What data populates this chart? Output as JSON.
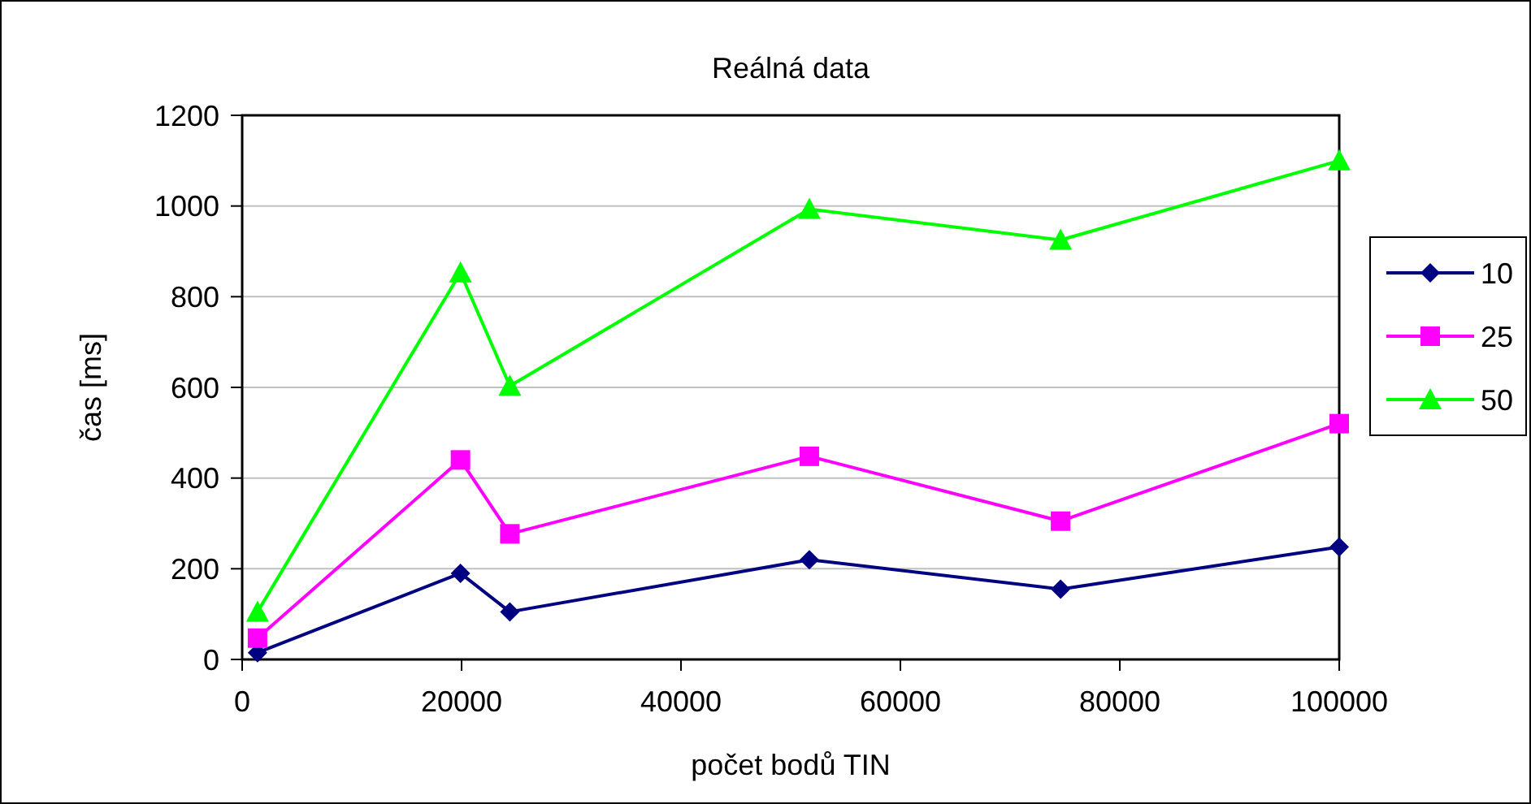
{
  "chart_data": {
    "type": "line",
    "title": "Reálná data",
    "xlabel": "počet bodů TIN",
    "ylabel": "čas [ms]",
    "x": [
      1400,
      19900,
      24400,
      51700,
      74600,
      100000
    ],
    "series": [
      {
        "name": "10",
        "color": "#000080",
        "marker": "diamond",
        "values": [
          15,
          190,
          105,
          220,
          155,
          248
        ]
      },
      {
        "name": "25",
        "color": "#ff00ff",
        "marker": "square",
        "values": [
          47,
          440,
          277,
          448,
          305,
          520
        ]
      },
      {
        "name": "50",
        "color": "#00ff00",
        "marker": "triangle",
        "values": [
          105,
          853,
          603,
          993,
          925,
          1100
        ]
      }
    ],
    "xlim": [
      0,
      100000
    ],
    "xticks": [
      0,
      20000,
      40000,
      60000,
      80000,
      100000
    ],
    "ylim": [
      0,
      1200
    ],
    "yticks": [
      0,
      200,
      400,
      600,
      800,
      1000,
      1200
    ],
    "grid": "y",
    "legend": "right"
  }
}
